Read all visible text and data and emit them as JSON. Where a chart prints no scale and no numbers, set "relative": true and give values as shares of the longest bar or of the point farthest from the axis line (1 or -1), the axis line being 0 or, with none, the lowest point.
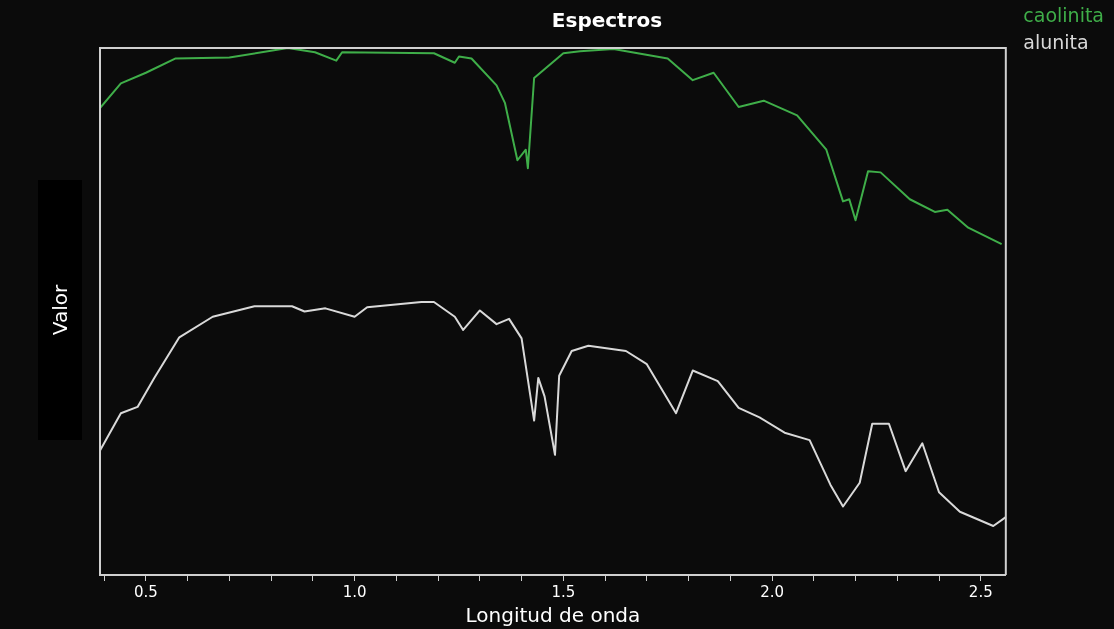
{
  "chart_data": {
    "type": "line",
    "title": "Espectros",
    "xlabel": "Longitud de onda",
    "ylabel": "Valor",
    "relative": true,
    "legend": "top right",
    "grid": false,
    "marker": "none",
    "line_style": "solid",
    "xlim": [
      0.39,
      2.56
    ],
    "xticks": [
      {
        "value": 0.4,
        "label": null
      },
      0.5,
      {
        "value": 0.6,
        "label": null
      },
      {
        "value": 0.7,
        "label": null
      },
      {
        "value": 0.8,
        "label": null
      },
      {
        "value": 0.9,
        "label": null
      },
      {
        "value": 1,
        "label": "1.0"
      },
      {
        "value": 1.1,
        "label": null
      },
      {
        "value": 1.2,
        "label": null
      },
      {
        "value": 1.3,
        "label": null
      },
      {
        "value": 1.4,
        "label": null
      },
      1.5,
      {
        "value": 1.6,
        "label": null
      },
      {
        "value": 1.7,
        "label": null
      },
      {
        "value": 1.8,
        "label": null
      },
      {
        "value": 1.9,
        "label": null
      },
      {
        "value": 2,
        "label": "2.0"
      },
      {
        "value": 2.1,
        "label": null
      },
      {
        "value": 2.2,
        "label": null
      },
      {
        "value": 2.3,
        "label": null
      },
      {
        "value": 2.4,
        "label": null
      },
      2.5
    ],
    "series": [
      {
        "name": "caolinita",
        "color": "#3fae49",
        "x": [
          0.39,
          0.44,
          0.5,
          0.57,
          0.7,
          0.84,
          0.905,
          0.956,
          0.97,
          1.19,
          1.24,
          1.25,
          1.28,
          1.34,
          1.36,
          1.39,
          1.41,
          1.415,
          1.43,
          1.5,
          1.54,
          1.62,
          1.75,
          1.81,
          1.86,
          1.92,
          1.98,
          2.06,
          2.13,
          2.17,
          2.185,
          2.2,
          2.23,
          2.26,
          2.33,
          2.39,
          2.42,
          2.47,
          2.55
        ],
        "values": [
          0.886,
          0.933,
          0.953,
          0.98,
          0.982,
          1,
          0.992,
          0.976,
          0.992,
          0.99,
          0.972,
          0.984,
          0.98,
          0.929,
          0.896,
          0.787,
          0.807,
          0.772,
          0.943,
          0.99,
          0.994,
          0.998,
          0.98,
          0.939,
          0.953,
          0.888,
          0.9,
          0.872,
          0.807,
          0.709,
          0.713,
          0.673,
          0.766,
          0.764,
          0.713,
          0.689,
          0.693,
          0.659,
          0.628
        ]
      },
      {
        "name": "alunita",
        "color": "#d9d9d9",
        "x": [
          0.39,
          0.44,
          0.48,
          0.52,
          0.58,
          0.66,
          0.76,
          0.85,
          0.88,
          0.93,
          1.0,
          1.03,
          1.16,
          1.19,
          1.24,
          1.26,
          1.3,
          1.34,
          1.37,
          1.4,
          1.43,
          1.44,
          1.455,
          1.48,
          1.49,
          1.52,
          1.56,
          1.65,
          1.7,
          1.77,
          1.81,
          1.87,
          1.92,
          1.97,
          2.03,
          2.09,
          2.14,
          2.17,
          2.21,
          2.24,
          2.28,
          2.32,
          2.36,
          2.4,
          2.45,
          2.53,
          2.56
        ],
        "values": [
          0.236,
          0.307,
          0.319,
          0.374,
          0.451,
          0.49,
          0.51,
          0.51,
          0.5,
          0.506,
          0.49,
          0.508,
          0.518,
          0.518,
          0.49,
          0.465,
          0.502,
          0.476,
          0.486,
          0.449,
          0.293,
          0.374,
          0.339,
          0.228,
          0.378,
          0.425,
          0.435,
          0.425,
          0.4,
          0.307,
          0.388,
          0.368,
          0.317,
          0.299,
          0.27,
          0.256,
          0.171,
          0.13,
          0.175,
          0.287,
          0.287,
          0.197,
          0.25,
          0.157,
          0.12,
          0.093,
          0.11
        ]
      }
    ]
  }
}
